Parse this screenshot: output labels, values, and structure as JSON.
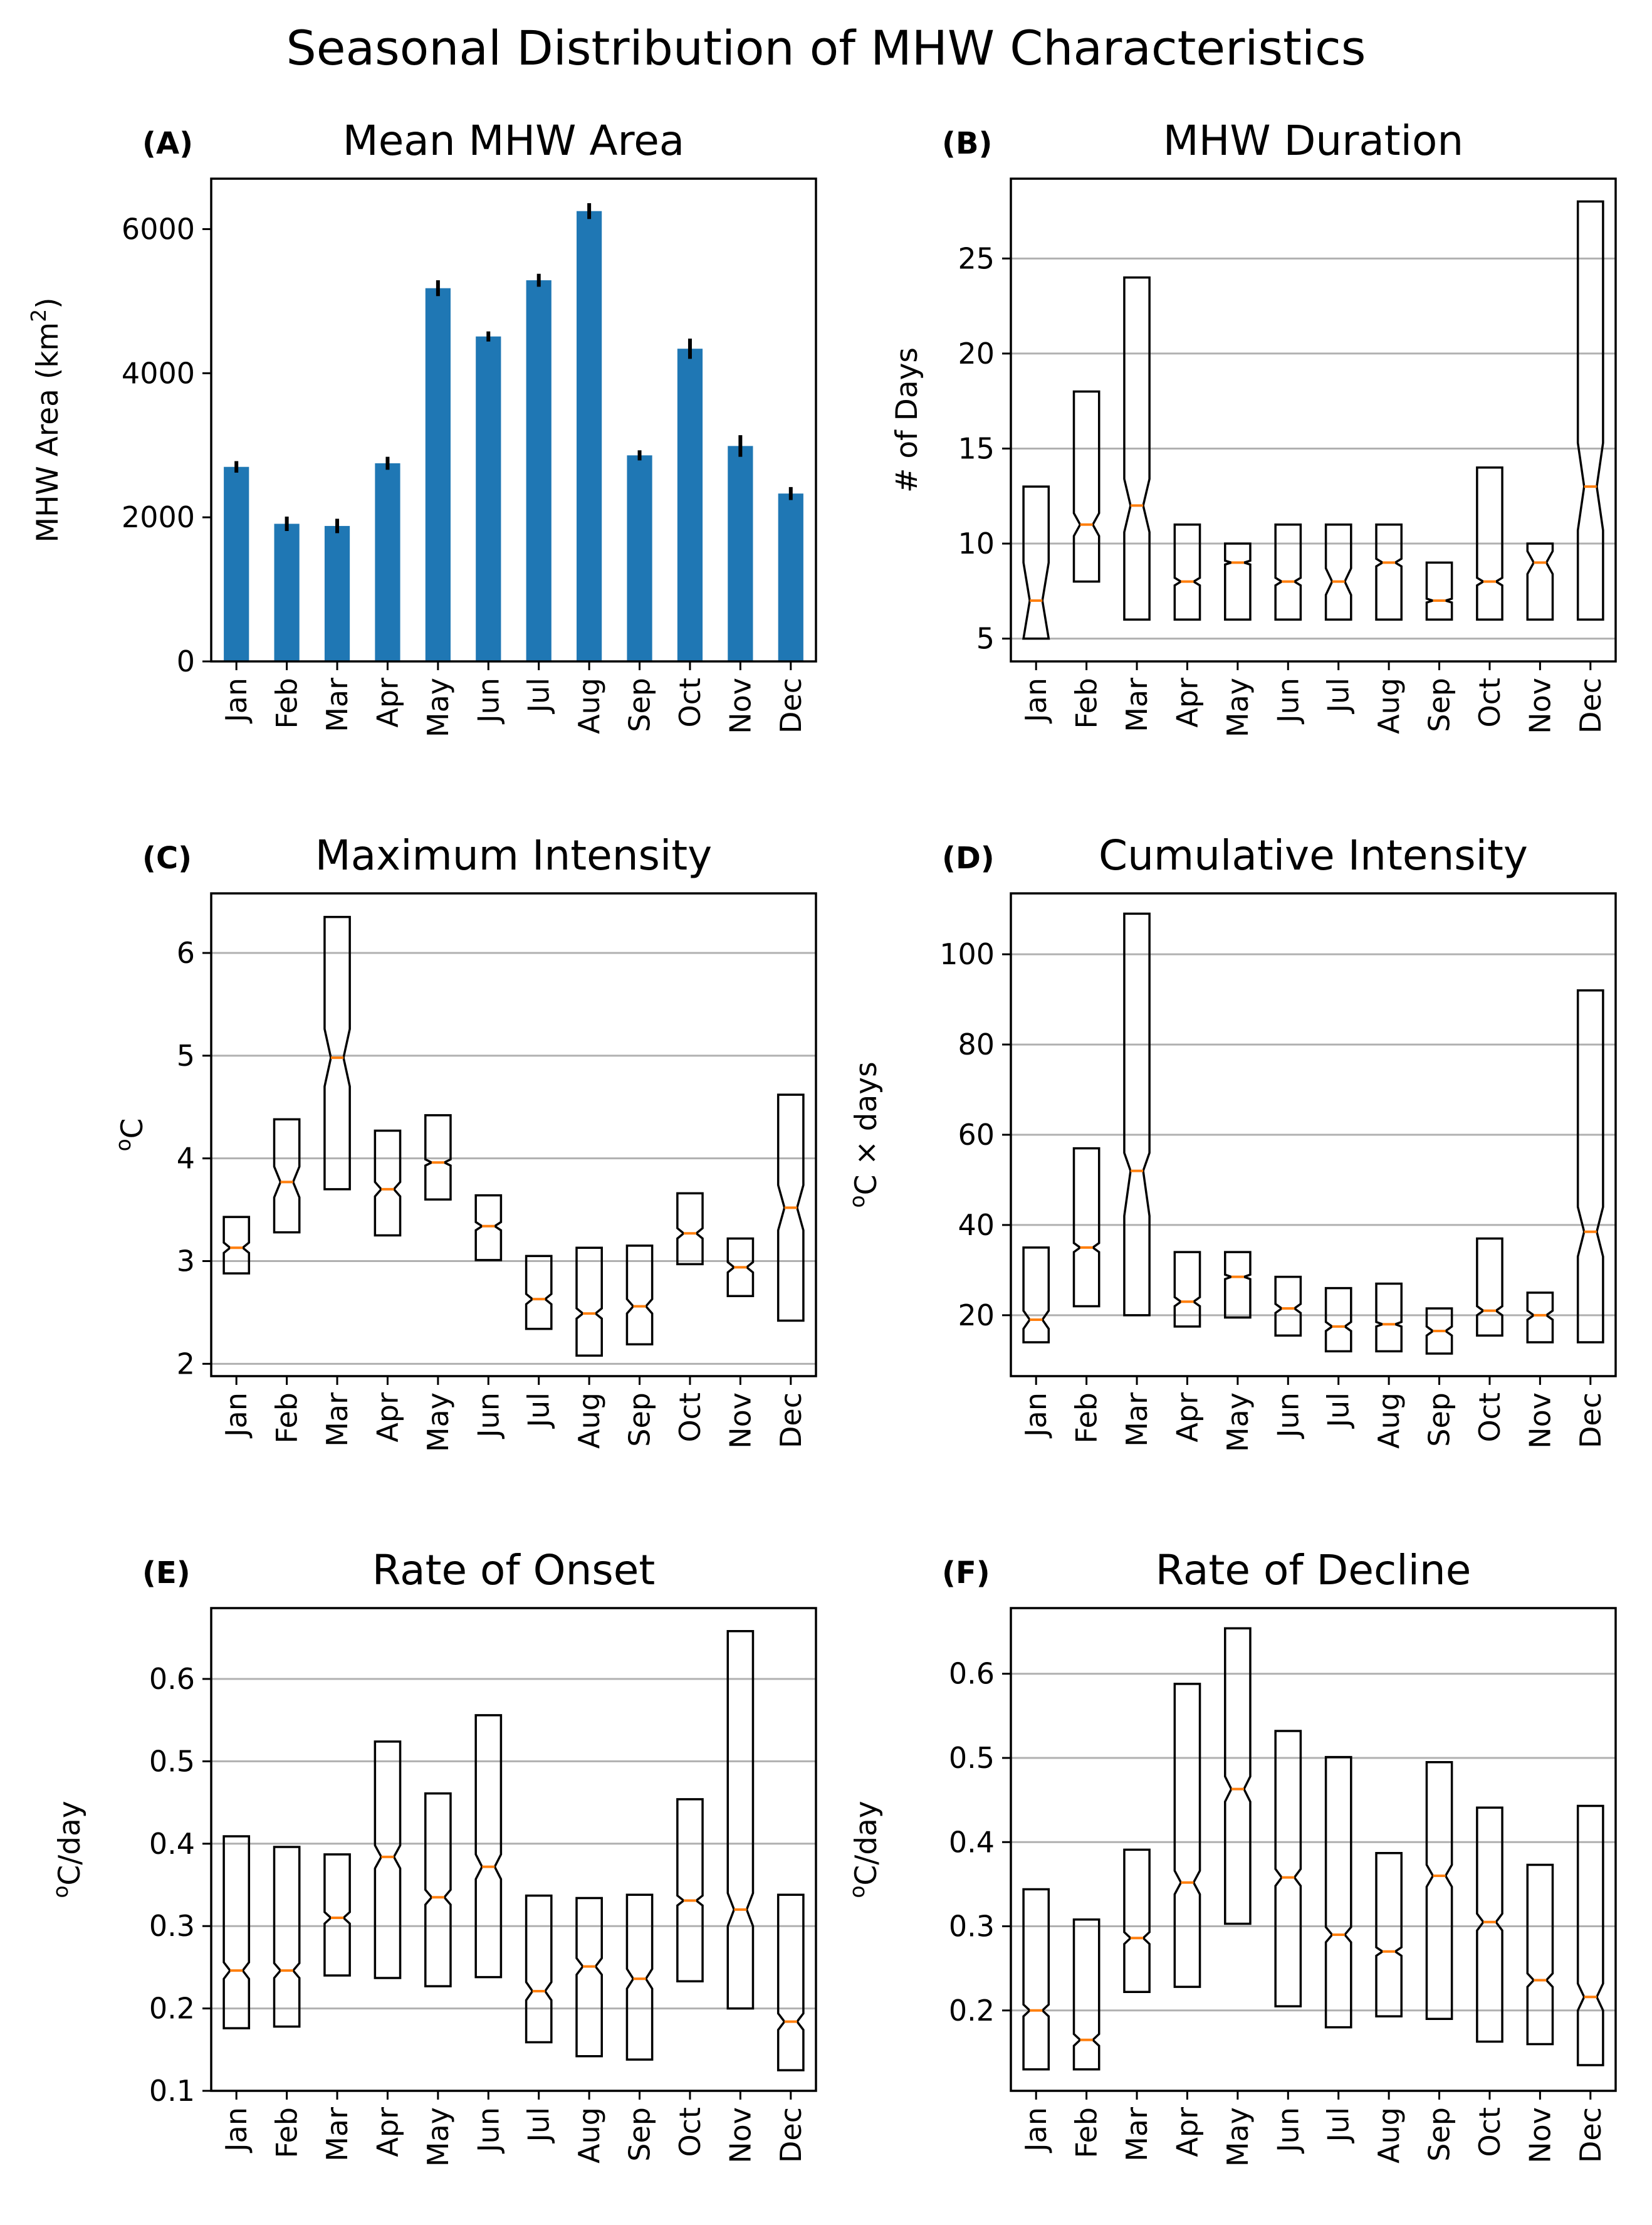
{
  "figure": {
    "title": "Seasonal Distribution of MHW Characteristics"
  },
  "chart_data": [
    {
      "id": "A",
      "panel_label": "(A)",
      "type": "bar",
      "title": "Mean MHW Area",
      "ylabel": "MHW Area (km²)",
      "ylabel_base": "MHW Area (km",
      "ylabel_sup": "2",
      "ylabel_tail": ")",
      "ylim": [
        0,
        6700
      ],
      "yticks": [
        0,
        2000,
        4000,
        6000
      ],
      "grid": false,
      "categories": [
        "Jan",
        "Feb",
        "Mar",
        "Apr",
        "May",
        "Jun",
        "Jul",
        "Aug",
        "Sep",
        "Oct",
        "Nov",
        "Dec"
      ],
      "values": [
        2700,
        1910,
        1880,
        2750,
        5180,
        4510,
        5290,
        6250,
        2860,
        4340,
        2990,
        2330
      ],
      "errors": [
        80,
        100,
        100,
        90,
        110,
        70,
        90,
        110,
        70,
        140,
        150,
        90
      ],
      "color": "#1f77b4"
    },
    {
      "id": "B",
      "panel_label": "(B)",
      "type": "box",
      "title": "MHW Duration",
      "ylabel": "# of Days",
      "ylim": [
        3.8,
        29.2
      ],
      "yticks": [
        5,
        10,
        15,
        20,
        25
      ],
      "grid": true,
      "categories": [
        "Jan",
        "Feb",
        "Mar",
        "Apr",
        "May",
        "Jun",
        "Jul",
        "Aug",
        "Sep",
        "Oct",
        "Nov",
        "Dec"
      ],
      "boxes": [
        {
          "q1": 5,
          "median": 7,
          "q3": 13,
          "notch_lo": 5,
          "notch_hi": 9
        },
        {
          "q1": 8,
          "median": 11,
          "q3": 18,
          "notch_lo": 10.4,
          "notch_hi": 11.6
        },
        {
          "q1": 6,
          "median": 12,
          "q3": 24,
          "notch_lo": 10.6,
          "notch_hi": 13.4
        },
        {
          "q1": 6,
          "median": 8,
          "q3": 11,
          "notch_lo": 7.8,
          "notch_hi": 8.2
        },
        {
          "q1": 6,
          "median": 9,
          "q3": 10,
          "notch_lo": 8.9,
          "notch_hi": 9.1
        },
        {
          "q1": 6,
          "median": 8,
          "q3": 11,
          "notch_lo": 7.8,
          "notch_hi": 8.2
        },
        {
          "q1": 6,
          "median": 8,
          "q3": 11,
          "notch_lo": 7.3,
          "notch_hi": 8.7
        },
        {
          "q1": 6,
          "median": 9,
          "q3": 11,
          "notch_lo": 8.8,
          "notch_hi": 9.2
        },
        {
          "q1": 6,
          "median": 7,
          "q3": 9,
          "notch_lo": 6.9,
          "notch_hi": 7.1
        },
        {
          "q1": 6,
          "median": 8,
          "q3": 14,
          "notch_lo": 7.8,
          "notch_hi": 8.2
        },
        {
          "q1": 6,
          "median": 9,
          "q3": 10,
          "notch_lo": 8.4,
          "notch_hi": 9.6
        },
        {
          "q1": 6,
          "median": 13,
          "q3": 28,
          "notch_lo": 10.7,
          "notch_hi": 15.3
        }
      ]
    },
    {
      "id": "C",
      "panel_label": "(C)",
      "type": "box",
      "title": "Maximum Intensity",
      "ylabel": "°C",
      "ylabel_sup": "o",
      "ylabel_base": "C",
      "ylim": [
        1.88,
        6.58
      ],
      "yticks": [
        2,
        3,
        4,
        5,
        6
      ],
      "grid": true,
      "categories": [
        "Jan",
        "Feb",
        "Mar",
        "Apr",
        "May",
        "Jun",
        "Jul",
        "Aug",
        "Sep",
        "Oct",
        "Nov",
        "Dec"
      ],
      "boxes": [
        {
          "q1": 2.88,
          "median": 3.13,
          "q3": 3.43,
          "notch_lo": 3.08,
          "notch_hi": 3.18
        },
        {
          "q1": 3.28,
          "median": 3.77,
          "q3": 4.38,
          "notch_lo": 3.62,
          "notch_hi": 3.92
        },
        {
          "q1": 3.7,
          "median": 4.98,
          "q3": 6.35,
          "notch_lo": 4.7,
          "notch_hi": 5.26
        },
        {
          "q1": 3.25,
          "median": 3.7,
          "q3": 4.27,
          "notch_lo": 3.63,
          "notch_hi": 3.77
        },
        {
          "q1": 3.6,
          "median": 3.96,
          "q3": 4.42,
          "notch_lo": 3.93,
          "notch_hi": 3.99
        },
        {
          "q1": 3.01,
          "median": 3.34,
          "q3": 3.64,
          "notch_lo": 3.3,
          "notch_hi": 3.38
        },
        {
          "q1": 2.34,
          "median": 2.63,
          "q3": 3.05,
          "notch_lo": 2.58,
          "notch_hi": 2.68
        },
        {
          "q1": 2.08,
          "median": 2.49,
          "q3": 3.13,
          "notch_lo": 2.44,
          "notch_hi": 2.54
        },
        {
          "q1": 2.19,
          "median": 2.56,
          "q3": 3.15,
          "notch_lo": 2.49,
          "notch_hi": 2.63
        },
        {
          "q1": 2.97,
          "median": 3.27,
          "q3": 3.66,
          "notch_lo": 3.22,
          "notch_hi": 3.32
        },
        {
          "q1": 2.66,
          "median": 2.94,
          "q3": 3.22,
          "notch_lo": 2.89,
          "notch_hi": 2.99
        },
        {
          "q1": 2.42,
          "median": 3.52,
          "q3": 4.62,
          "notch_lo": 3.3,
          "notch_hi": 3.74
        }
      ]
    },
    {
      "id": "D",
      "panel_label": "(D)",
      "type": "box",
      "title": "Cumulative Intensity",
      "ylabel": "°C × days",
      "ylabel_sup": "o",
      "ylabel_base": "C × days",
      "ylim": [
        6.5,
        113.5
      ],
      "yticks": [
        20,
        40,
        60,
        80,
        100
      ],
      "grid": true,
      "categories": [
        "Jan",
        "Feb",
        "Mar",
        "Apr",
        "May",
        "Jun",
        "Jul",
        "Aug",
        "Sep",
        "Oct",
        "Nov",
        "Dec"
      ],
      "boxes": [
        {
          "q1": 14,
          "median": 19,
          "q3": 35,
          "notch_lo": 17,
          "notch_hi": 21
        },
        {
          "q1": 22,
          "median": 35,
          "q3": 57,
          "notch_lo": 34,
          "notch_hi": 36
        },
        {
          "q1": 20,
          "median": 52,
          "q3": 109,
          "notch_lo": 42,
          "notch_hi": 56
        },
        {
          "q1": 17.5,
          "median": 23,
          "q3": 34,
          "notch_lo": 22,
          "notch_hi": 24
        },
        {
          "q1": 19.5,
          "median": 28.5,
          "q3": 34,
          "notch_lo": 28,
          "notch_hi": 29
        },
        {
          "q1": 15.5,
          "median": 21.5,
          "q3": 28.5,
          "notch_lo": 20.5,
          "notch_hi": 22.5
        },
        {
          "q1": 12,
          "median": 17.5,
          "q3": 26,
          "notch_lo": 16.5,
          "notch_hi": 18.5
        },
        {
          "q1": 12,
          "median": 18,
          "q3": 27,
          "notch_lo": 17.5,
          "notch_hi": 18.5
        },
        {
          "q1": 11.5,
          "median": 16.5,
          "q3": 21.5,
          "notch_lo": 15.5,
          "notch_hi": 17.5
        },
        {
          "q1": 15.5,
          "median": 21,
          "q3": 37,
          "notch_lo": 20,
          "notch_hi": 22
        },
        {
          "q1": 14,
          "median": 20,
          "q3": 25,
          "notch_lo": 19,
          "notch_hi": 21
        },
        {
          "q1": 14,
          "median": 38.5,
          "q3": 92,
          "notch_lo": 33,
          "notch_hi": 44
        }
      ]
    },
    {
      "id": "E",
      "panel_label": "(E)",
      "type": "box",
      "title": "Rate of Onset",
      "ylabel": "°C/day",
      "ylabel_sup": "o",
      "ylabel_base": "C/day",
      "ylim": [
        0.1,
        0.686
      ],
      "yticks": [
        0.1,
        0.2,
        0.3,
        0.4,
        0.5,
        0.6
      ],
      "grid": true,
      "categories": [
        "Jan",
        "Feb",
        "Mar",
        "Apr",
        "May",
        "Jun",
        "Jul",
        "Aug",
        "Sep",
        "Oct",
        "Nov",
        "Dec"
      ],
      "boxes": [
        {
          "q1": 0.176,
          "median": 0.246,
          "q3": 0.409,
          "notch_lo": 0.236,
          "notch_hi": 0.256
        },
        {
          "q1": 0.178,
          "median": 0.246,
          "q3": 0.396,
          "notch_lo": 0.237,
          "notch_hi": 0.255
        },
        {
          "q1": 0.24,
          "median": 0.31,
          "q3": 0.387,
          "notch_lo": 0.303,
          "notch_hi": 0.317
        },
        {
          "q1": 0.237,
          "median": 0.384,
          "q3": 0.524,
          "notch_lo": 0.37,
          "notch_hi": 0.398
        },
        {
          "q1": 0.227,
          "median": 0.335,
          "q3": 0.461,
          "notch_lo": 0.326,
          "notch_hi": 0.344
        },
        {
          "q1": 0.238,
          "median": 0.372,
          "q3": 0.556,
          "notch_lo": 0.357,
          "notch_hi": 0.387
        },
        {
          "q1": 0.159,
          "median": 0.221,
          "q3": 0.337,
          "notch_lo": 0.21,
          "notch_hi": 0.232
        },
        {
          "q1": 0.142,
          "median": 0.251,
          "q3": 0.334,
          "notch_lo": 0.241,
          "notch_hi": 0.261
        },
        {
          "q1": 0.138,
          "median": 0.236,
          "q3": 0.338,
          "notch_lo": 0.224,
          "notch_hi": 0.248
        },
        {
          "q1": 0.233,
          "median": 0.331,
          "q3": 0.454,
          "notch_lo": 0.325,
          "notch_hi": 0.337
        },
        {
          "q1": 0.2,
          "median": 0.32,
          "q3": 0.658,
          "notch_lo": 0.3,
          "notch_hi": 0.34
        },
        {
          "q1": 0.125,
          "median": 0.184,
          "q3": 0.338,
          "notch_lo": 0.174,
          "notch_hi": 0.194
        }
      ]
    },
    {
      "id": "F",
      "panel_label": "(F)",
      "type": "box",
      "title": "Rate of Decline",
      "ylabel": "°C/day",
      "ylabel_sup": "o",
      "ylabel_base": "C/day",
      "ylim": [
        0.1045,
        0.678
      ],
      "yticks": [
        0.2,
        0.3,
        0.4,
        0.5,
        0.6
      ],
      "grid": true,
      "categories": [
        "Jan",
        "Feb",
        "Mar",
        "Apr",
        "May",
        "Jun",
        "Jul",
        "Aug",
        "Sep",
        "Oct",
        "Nov",
        "Dec"
      ],
      "boxes": [
        {
          "q1": 0.13,
          "median": 0.2,
          "q3": 0.344,
          "notch_lo": 0.193,
          "notch_hi": 0.207
        },
        {
          "q1": 0.13,
          "median": 0.165,
          "q3": 0.308,
          "notch_lo": 0.158,
          "notch_hi": 0.172
        },
        {
          "q1": 0.222,
          "median": 0.286,
          "q3": 0.391,
          "notch_lo": 0.279,
          "notch_hi": 0.293
        },
        {
          "q1": 0.228,
          "median": 0.352,
          "q3": 0.588,
          "notch_lo": 0.338,
          "notch_hi": 0.366
        },
        {
          "q1": 0.303,
          "median": 0.463,
          "q3": 0.654,
          "notch_lo": 0.448,
          "notch_hi": 0.478
        },
        {
          "q1": 0.205,
          "median": 0.358,
          "q3": 0.532,
          "notch_lo": 0.348,
          "notch_hi": 0.368
        },
        {
          "q1": 0.18,
          "median": 0.29,
          "q3": 0.501,
          "notch_lo": 0.281,
          "notch_hi": 0.299
        },
        {
          "q1": 0.193,
          "median": 0.27,
          "q3": 0.387,
          "notch_lo": 0.265,
          "notch_hi": 0.275
        },
        {
          "q1": 0.19,
          "median": 0.36,
          "q3": 0.495,
          "notch_lo": 0.347,
          "notch_hi": 0.373
        },
        {
          "q1": 0.163,
          "median": 0.305,
          "q3": 0.441,
          "notch_lo": 0.295,
          "notch_hi": 0.315
        },
        {
          "q1": 0.16,
          "median": 0.236,
          "q3": 0.373,
          "notch_lo": 0.228,
          "notch_hi": 0.244
        },
        {
          "q1": 0.135,
          "median": 0.216,
          "q3": 0.443,
          "notch_lo": 0.2,
          "notch_hi": 0.232
        }
      ]
    }
  ]
}
